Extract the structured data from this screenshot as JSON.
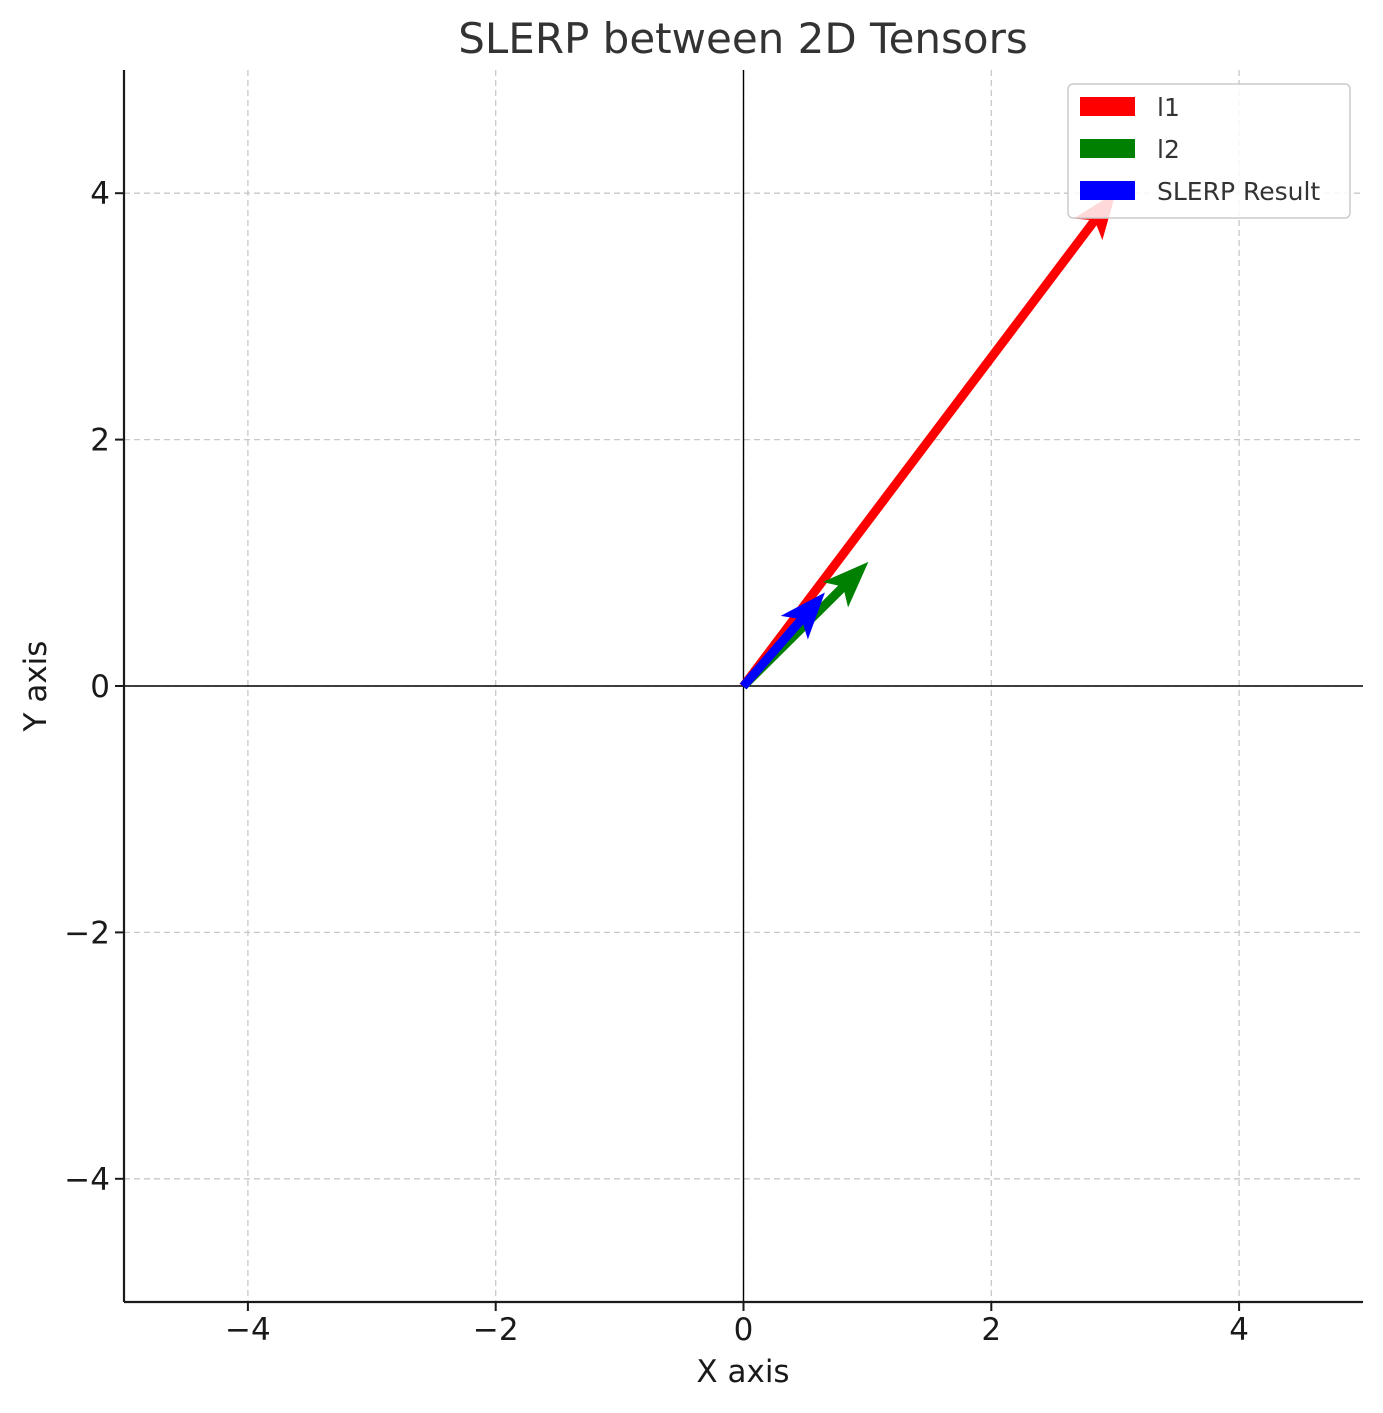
{
  "chart_data": {
    "type": "quiver",
    "title": "SLERP between 2D Tensors",
    "xlabel": "X axis",
    "ylabel": "Y axis",
    "xlim": [
      -5,
      5
    ],
    "ylim": [
      -5,
      5
    ],
    "xticks": [
      -4,
      -2,
      0,
      2,
      4
    ],
    "yticks": [
      -4,
      -2,
      0,
      2,
      4
    ],
    "tick_labels_x": [
      "−4",
      "−2",
      "0",
      "2",
      "4"
    ],
    "tick_labels_y": [
      "−4",
      "−2",
      "0",
      "2",
      "4"
    ],
    "grid": true,
    "grid_style": "dashed",
    "reference_lines": {
      "x": 0,
      "y": 0
    },
    "legend_position": "top-right",
    "series": [
      {
        "name": "l1",
        "color": "#ff0000",
        "origin": [
          0,
          0
        ],
        "vector": [
          3,
          4
        ]
      },
      {
        "name": "l2",
        "color": "#008000",
        "origin": [
          0,
          0
        ],
        "vector": [
          1,
          1
        ]
      },
      {
        "name": "SLERP Result",
        "color": "#0000ff",
        "origin": [
          0,
          0
        ],
        "vector": [
          0.65,
          0.75
        ]
      }
    ]
  }
}
